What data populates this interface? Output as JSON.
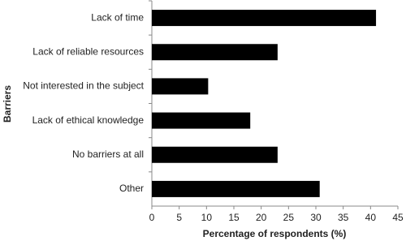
{
  "chart_data": {
    "type": "barh",
    "xlabel": "Percentage of respondents (%)",
    "ylabel": "Barriers",
    "categories": [
      "Lack of time",
      "Lack of reliable resources",
      "Not interested in the subject",
      "Lack of ethical knowledge",
      "No barriers at all",
      "Other"
    ],
    "values": [
      41,
      23,
      10.3,
      18,
      23,
      30.7
    ],
    "color": "#000000",
    "xlim": [
      0,
      45
    ],
    "xticks": [
      0,
      5,
      10,
      15,
      20,
      25,
      30,
      35,
      40,
      45
    ],
    "grid": false
  }
}
